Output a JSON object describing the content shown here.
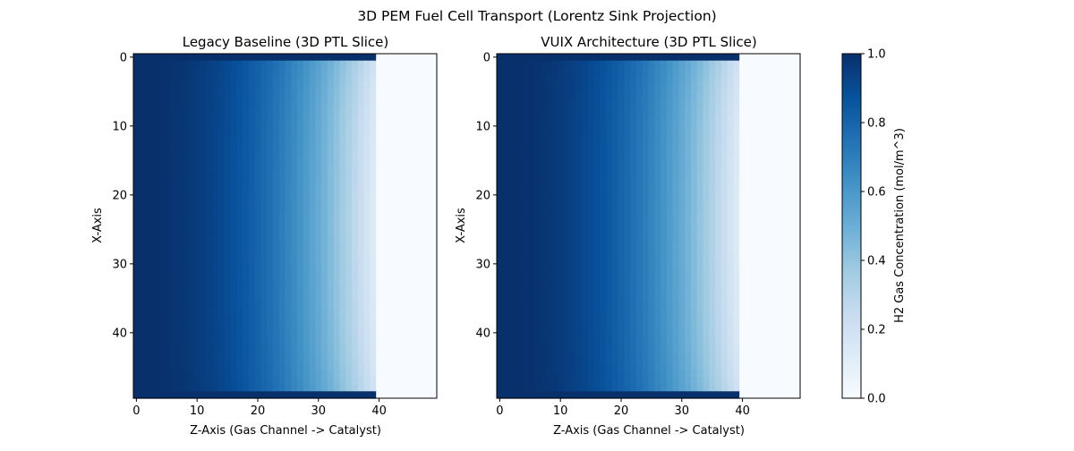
{
  "figure": {
    "suptitle": "3D PEM Fuel Cell Transport (Lorentz Sink Projection)"
  },
  "chart_data": [
    {
      "type": "heatmap",
      "title": "Legacy Baseline (3D PTL Slice)",
      "xlabel": "Z-Axis (Gas Channel -> Catalyst)",
      "ylabel": "X-Axis",
      "xlim": [
        0,
        49
      ],
      "ylim": [
        0,
        49
      ],
      "y_inverted": true,
      "xticks": [
        "0",
        "10",
        "20",
        "30",
        "40"
      ],
      "yticks": [
        "0",
        "10",
        "20",
        "30",
        "40"
      ],
      "grid_shape": [
        50,
        50
      ],
      "colormap": "Blues",
      "vmin": 0.0,
      "vmax": 1.0,
      "active_z_range": [
        0,
        39
      ],
      "empty_region_value": 0.0,
      "boundary_rows_value": 1.0,
      "field_description": "Concentration near 1.0 at Z=0 decaying toward ~0.05 at Z=39 (steeper near top/bottom edges); rows X=0 and X=49 saturated at 1.0; Z>=40 equals 0."
    },
    {
      "type": "heatmap",
      "title": "VUIX Architecture (3D PTL Slice)",
      "xlabel": "Z-Axis (Gas Channel -> Catalyst)",
      "ylabel": "X-Axis",
      "xlim": [
        0,
        49
      ],
      "ylim": [
        0,
        49
      ],
      "y_inverted": true,
      "xticks": [
        "0",
        "10",
        "20",
        "30",
        "40"
      ],
      "yticks": [
        "0",
        "10",
        "20",
        "30",
        "40"
      ],
      "grid_shape": [
        50,
        50
      ],
      "colormap": "Blues",
      "vmin": 0.0,
      "vmax": 1.0,
      "active_z_range": [
        0,
        39
      ],
      "empty_region_value": 0.0,
      "boundary_rows_value": 1.0,
      "field_description": "Concentration near 1.0 at Z=0 decaying toward ~0.05 at Z=39 (steeper near top/bottom edges); rows X=0 and X=49 saturated at 1.0; Z>=40 equals 0."
    }
  ],
  "colorbar": {
    "label": "H2 Gas Concentration (mol/m^3)",
    "ticks": [
      "0.0",
      "0.2",
      "0.4",
      "0.6",
      "0.8",
      "1.0"
    ],
    "colors": {
      "c0": "#f7fbff",
      "c1": "#deebf7",
      "c2": "#c6dbef",
      "c3": "#9ecae1",
      "c4": "#6baed6",
      "c5": "#4292c6",
      "c6": "#2171b5",
      "c7": "#08519c",
      "c8": "#08306b"
    }
  }
}
